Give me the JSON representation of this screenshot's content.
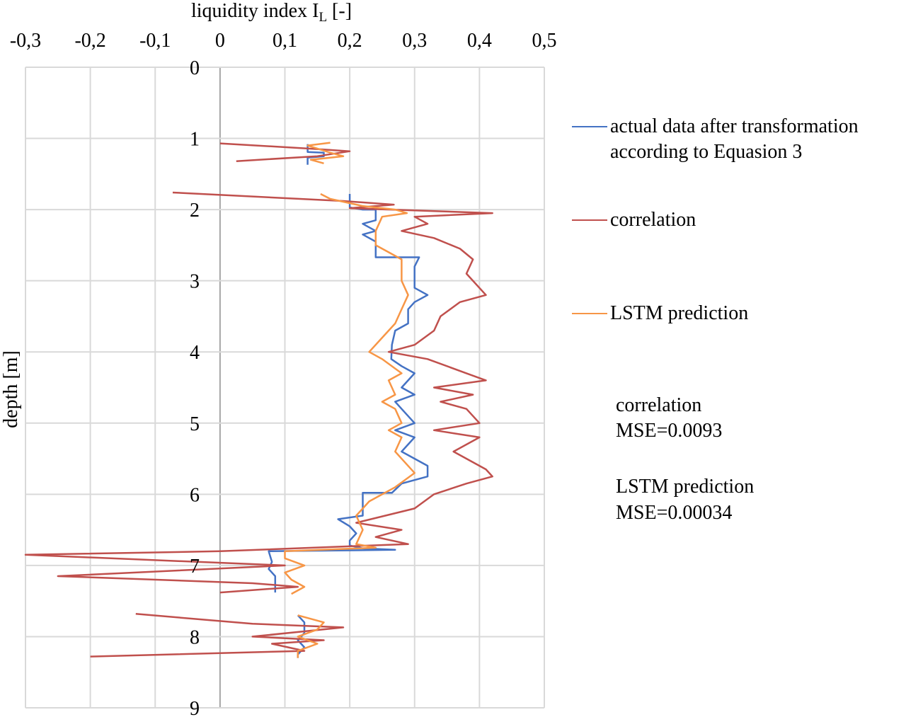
{
  "chart_data": {
    "type": "line",
    "xlabel": "liquidity index I",
    "xlabel_subscript": "L",
    "xlabel_unit": "[-]",
    "ylabel": "depth [m]",
    "x_axis_position": "top",
    "y_axis_inverted": true,
    "xlim": [
      -0.3,
      0.5
    ],
    "ylim": [
      0,
      9
    ],
    "x_ticks": [
      "-0,3",
      "-0,2",
      "-0,1",
      "0",
      "0,1",
      "0,2",
      "0,3",
      "0,4",
      "0,5"
    ],
    "y_ticks": [
      "0",
      "1",
      "2",
      "3",
      "4",
      "5",
      "6",
      "7",
      "8",
      "9"
    ],
    "grid": true,
    "legend_position": "right",
    "series": [
      {
        "name": "actual data after transformation according to Equasion 3",
        "legend_lines": [
          "actual data after transformation",
          "according to Equasion 3"
        ],
        "color": "#4472c4",
        "segments": [
          [
            [
              0.135,
              1.08
            ],
            [
              0.135,
              1.19
            ],
            [
              0.16,
              1.2
            ],
            [
              0.16,
              1.25
            ],
            [
              0.135,
              1.27
            ],
            [
              0.135,
              1.37
            ]
          ],
          [
            [
              0.2,
              1.78
            ],
            [
              0.2,
              1.97
            ],
            [
              0.22,
              2.0
            ],
            [
              0.24,
              2.0
            ],
            [
              0.24,
              2.15
            ],
            [
              0.22,
              2.2
            ],
            [
              0.24,
              2.3
            ],
            [
              0.22,
              2.35
            ],
            [
              0.24,
              2.45
            ],
            [
              0.24,
              2.67
            ],
            [
              0.307,
              2.67
            ],
            [
              0.3,
              2.8
            ],
            [
              0.3,
              3.0
            ],
            [
              0.3,
              3.1
            ],
            [
              0.32,
              3.2
            ],
            [
              0.3,
              3.3
            ],
            [
              0.29,
              3.4
            ],
            [
              0.29,
              3.6
            ],
            [
              0.27,
              3.7
            ],
            [
              0.265,
              3.9
            ],
            [
              0.264,
              4.1
            ],
            [
              0.28,
              4.2
            ],
            [
              0.3,
              4.3
            ],
            [
              0.29,
              4.4
            ],
            [
              0.28,
              4.5
            ],
            [
              0.3,
              4.6
            ],
            [
              0.27,
              4.7
            ],
            [
              0.28,
              4.8
            ],
            [
              0.3,
              5.0
            ],
            [
              0.27,
              5.1
            ],
            [
              0.3,
              5.2
            ],
            [
              0.29,
              5.3
            ],
            [
              0.28,
              5.4
            ],
            [
              0.32,
              5.6
            ],
            [
              0.32,
              5.75
            ],
            [
              0.28,
              5.85
            ],
            [
              0.265,
              5.98
            ],
            [
              0.22,
              5.98
            ],
            [
              0.22,
              6.3
            ],
            [
              0.182,
              6.35
            ],
            [
              0.2,
              6.45
            ],
            [
              0.21,
              6.55
            ],
            [
              0.2,
              6.65
            ],
            [
              0.2,
              6.72
            ],
            [
              0.22,
              6.76
            ],
            [
              0.27,
              6.78
            ],
            [
              0.075,
              6.8
            ],
            [
              0.08,
              6.95
            ],
            [
              0.075,
              7.05
            ],
            [
              0.085,
              7.15
            ],
            [
              0.085,
              7.38
            ]
          ],
          [
            [
              0.12,
              7.7
            ],
            [
              0.13,
              7.8
            ],
            [
              0.13,
              7.95
            ],
            [
              0.12,
              8.05
            ],
            [
              0.13,
              8.15
            ],
            [
              0.12,
              8.25
            ],
            [
              0.12,
              8.3
            ]
          ]
        ]
      },
      {
        "name": "correlation",
        "color": "#c0504d",
        "segments": [
          [
            [
              0.0,
              1.07
            ],
            [
              0.15,
              1.15
            ],
            [
              0.2,
              1.18
            ],
            [
              0.15,
              1.25
            ],
            [
              0.025,
              1.32
            ]
          ],
          [
            [
              -0.073,
              1.76
            ],
            [
              0.19,
              1.88
            ],
            [
              0.268,
              1.93
            ],
            [
              0.2,
              1.98
            ],
            [
              0.42,
              2.05
            ],
            [
              0.3,
              2.1
            ],
            [
              0.32,
              2.2
            ],
            [
              0.28,
              2.3
            ],
            [
              0.33,
              2.4
            ],
            [
              0.37,
              2.55
            ],
            [
              0.39,
              2.7
            ],
            [
              0.38,
              2.9
            ],
            [
              0.41,
              3.2
            ],
            [
              0.37,
              3.3
            ],
            [
              0.34,
              3.5
            ],
            [
              0.33,
              3.7
            ],
            [
              0.3,
              3.9
            ],
            [
              0.26,
              4.0
            ],
            [
              0.32,
              4.1
            ],
            [
              0.38,
              4.3
            ],
            [
              0.41,
              4.4
            ],
            [
              0.33,
              4.5
            ],
            [
              0.39,
              4.6
            ],
            [
              0.34,
              4.7
            ],
            [
              0.38,
              4.8
            ],
            [
              0.4,
              5.0
            ],
            [
              0.33,
              5.1
            ],
            [
              0.4,
              5.2
            ],
            [
              0.36,
              5.4
            ],
            [
              0.41,
              5.65
            ],
            [
              0.42,
              5.75
            ],
            [
              0.38,
              5.85
            ],
            [
              0.33,
              6.0
            ],
            [
              0.3,
              6.2
            ],
            [
              0.21,
              6.4
            ],
            [
              0.28,
              6.5
            ],
            [
              0.24,
              6.6
            ],
            [
              0.29,
              6.7
            ],
            [
              0.0,
              6.8
            ],
            [
              -0.3,
              6.85
            ],
            [
              0.1,
              7.0
            ],
            [
              -0.25,
              7.15
            ],
            [
              0.05,
              7.25
            ],
            [
              0.12,
              7.3
            ],
            [
              0.0,
              7.38
            ]
          ],
          [
            [
              -0.13,
              7.68
            ],
            [
              0.05,
              7.82
            ],
            [
              0.19,
              7.87
            ],
            [
              0.05,
              8.0
            ],
            [
              0.16,
              8.05
            ],
            [
              0.08,
              8.1
            ],
            [
              0.13,
              8.2
            ],
            [
              -0.2,
              8.28
            ]
          ]
        ]
      },
      {
        "name": "LSTM prediction",
        "color": "#f79646",
        "segments": [
          [
            [
              0.17,
              1.06
            ],
            [
              0.135,
              1.1
            ],
            [
              0.17,
              1.2
            ],
            [
              0.19,
              1.25
            ],
            [
              0.14,
              1.3
            ],
            [
              0.16,
              1.35
            ]
          ],
          [
            [
              0.155,
              1.78
            ],
            [
              0.17,
              1.85
            ],
            [
              0.22,
              1.95
            ],
            [
              0.27,
              2.0
            ],
            [
              0.288,
              2.05
            ],
            [
              0.25,
              2.1
            ],
            [
              0.24,
              2.3
            ],
            [
              0.24,
              2.5
            ],
            [
              0.26,
              2.6
            ],
            [
              0.28,
              2.7
            ],
            [
              0.28,
              3.0
            ],
            [
              0.29,
              3.2
            ],
            [
              0.28,
              3.4
            ],
            [
              0.27,
              3.6
            ],
            [
              0.25,
              3.8
            ],
            [
              0.23,
              4.0
            ],
            [
              0.25,
              4.1
            ],
            [
              0.28,
              4.3
            ],
            [
              0.26,
              4.4
            ],
            [
              0.27,
              4.6
            ],
            [
              0.25,
              4.7
            ],
            [
              0.27,
              4.8
            ],
            [
              0.28,
              5.0
            ],
            [
              0.26,
              5.1
            ],
            [
              0.28,
              5.2
            ],
            [
              0.27,
              5.4
            ],
            [
              0.28,
              5.5
            ],
            [
              0.3,
              5.7
            ],
            [
              0.27,
              5.9
            ],
            [
              0.23,
              6.1
            ],
            [
              0.21,
              6.3
            ],
            [
              0.22,
              6.5
            ],
            [
              0.21,
              6.7
            ],
            [
              0.24,
              6.75
            ],
            [
              0.1,
              6.8
            ],
            [
              0.1,
              6.9
            ],
            [
              0.13,
              7.0
            ],
            [
              0.1,
              7.1
            ],
            [
              0.11,
              7.2
            ],
            [
              0.13,
              7.3
            ],
            [
              0.11,
              7.4
            ]
          ],
          [
            [
              0.12,
              7.7
            ],
            [
              0.16,
              7.8
            ],
            [
              0.15,
              7.9
            ],
            [
              0.12,
              8.0
            ],
            [
              0.15,
              8.1
            ],
            [
              0.12,
              8.2
            ],
            [
              0.12,
              8.3
            ]
          ]
        ]
      }
    ],
    "annotations": [
      {
        "lines": [
          "correlation",
          "MSE=0.0093"
        ]
      },
      {
        "lines": [
          "LSTM prediction",
          "MSE=0.00034"
        ]
      }
    ]
  }
}
